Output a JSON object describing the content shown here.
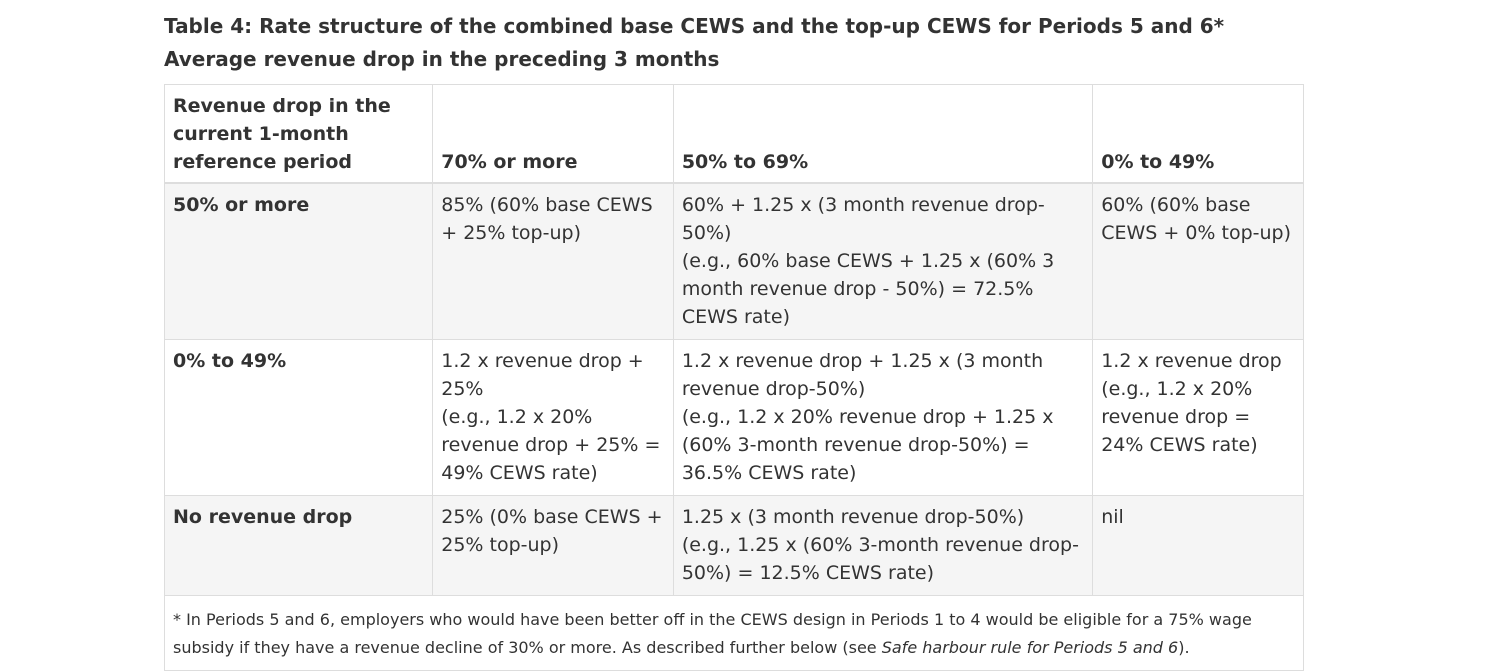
{
  "caption": {
    "title": "Table 4: Rate structure of the combined base CEWS and the top-up CEWS for Periods 5 and 6*",
    "subtitle": "Average revenue drop in the preceding 3 months"
  },
  "table": {
    "headers": [
      "Revenue drop in the current 1-month reference period",
      "70% or more",
      "50% to 69%",
      "0% to 49%"
    ],
    "rows": [
      {
        "label": "50% or more",
        "cells": [
          [
            "85% (60% base CEWS + 25% top-up)"
          ],
          [
            "60% + 1.25 x (3 month revenue drop-50%)",
            "(e.g., 60% base CEWS + 1.25 x (60% 3 month revenue drop - 50%) = 72.5% CEWS rate)"
          ],
          [
            "60% (60% base CEWS + 0% top-up)"
          ]
        ]
      },
      {
        "label": "0% to 49%",
        "cells": [
          [
            "1.2 x revenue drop + 25%",
            "(e.g., 1.2 x 20% revenue drop + 25% = 49% CEWS rate)"
          ],
          [
            "1.2 x revenue drop + 1.25 x (3 month revenue drop-50%)",
            "(e.g., 1.2 x 20% revenue drop + 1.25 x (60% 3-month revenue drop-50%) = 36.5% CEWS rate)"
          ],
          [
            "1.2 x revenue drop",
            "(e.g., 1.2 x 20% revenue drop = 24% CEWS rate)"
          ]
        ]
      },
      {
        "label": "No revenue drop",
        "cells": [
          [
            "25% (0% base CEWS + 25% top-up)"
          ],
          [
            "1.25 x (3 month revenue drop-50%)",
            "(e.g., 1.25 x (60% 3-month revenue drop-50%) = 12.5% CEWS rate)"
          ],
          [
            "nil"
          ]
        ]
      }
    ],
    "footnote": {
      "text_before": "* In Periods 5 and 6, employers who would have been better off in the CEWS design in Periods 1 to 4 would be eligible for a 75% wage subsidy if they have a revenue decline of 30% or more. As described further below (see ",
      "link_text": "Safe harbour rule for Periods 5 and 6",
      "text_after": ")."
    }
  }
}
